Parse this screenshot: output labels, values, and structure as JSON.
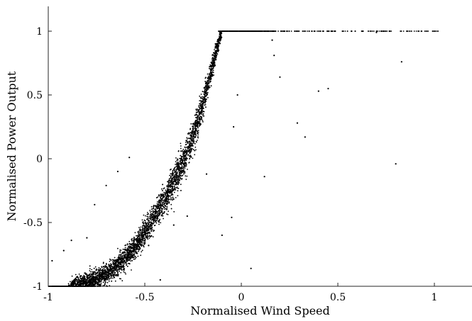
{
  "chart_data": {
    "type": "scatter",
    "title": "",
    "xlabel": "Normalised Wind Speed",
    "ylabel": "Normalised Power Output",
    "xlim": [
      -1,
      1.2
    ],
    "ylim": [
      -1,
      1.2
    ],
    "grid": false,
    "x_ticks": [
      -1,
      -0.5,
      0,
      0.5,
      1
    ],
    "x_tick_labels": [
      "-1",
      "-0.5",
      "0",
      "0.5",
      "1"
    ],
    "y_ticks": [
      -1,
      -0.5,
      0,
      0.5,
      1
    ],
    "y_tick_labels": [
      "-1",
      "-0.5",
      "0",
      "0.5",
      "1"
    ],
    "marker_color": "#000000",
    "power_curve": {
      "x": [
        -1.0,
        -0.95,
        -0.9,
        -0.85,
        -0.8,
        -0.75,
        -0.7,
        -0.65,
        -0.6,
        -0.55,
        -0.5,
        -0.45,
        -0.4,
        -0.35,
        -0.3,
        -0.25,
        -0.2,
        -0.15,
        -0.12,
        -0.1,
        0.0,
        0.5,
        1.0
      ],
      "y": [
        -1.0,
        -1.0,
        -1.0,
        -0.99,
        -0.97,
        -0.94,
        -0.9,
        -0.85,
        -0.78,
        -0.69,
        -0.58,
        -0.46,
        -0.33,
        -0.18,
        -0.02,
        0.17,
        0.42,
        0.72,
        0.9,
        1.0,
        1.0,
        1.0,
        1.0
      ]
    },
    "outliers": {
      "x": [
        -0.58,
        -0.64,
        -0.7,
        -0.76,
        -0.8,
        -0.88,
        -0.92,
        -0.98,
        -0.48,
        -0.42,
        -0.35,
        -0.28,
        -0.18,
        -0.1,
        -0.05,
        -0.04,
        -0.02,
        0.05,
        0.12,
        0.16,
        0.17,
        0.2,
        0.29,
        0.33,
        0.4,
        0.45,
        0.7,
        0.8,
        0.83
      ],
      "y": [
        0.01,
        -0.1,
        -0.21,
        -0.36,
        -0.62,
        -0.64,
        -0.72,
        -0.8,
        -0.68,
        -0.95,
        -0.52,
        -0.45,
        -0.12,
        -0.6,
        -0.46,
        0.25,
        0.5,
        -0.86,
        -0.14,
        0.93,
        0.81,
        0.64,
        0.28,
        0.17,
        0.53,
        0.55,
        0.99,
        -0.04,
        0.76
      ]
    }
  }
}
